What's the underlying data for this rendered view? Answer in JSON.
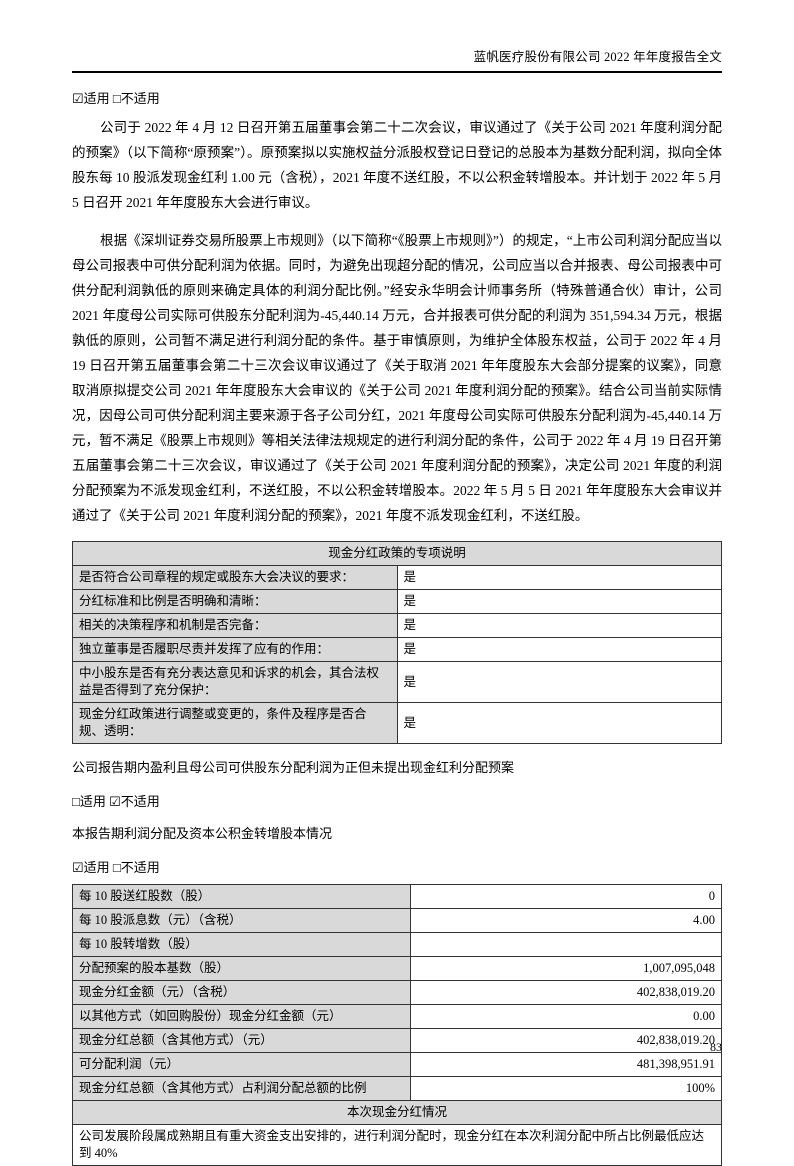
{
  "page": {
    "header_title": "蓝帆医疗股份有限公司 2022 年年度报告全文",
    "page_number": "83"
  },
  "applicability": {
    "line1": "☑适用 □不适用",
    "line2": "□适用 ☑不适用",
    "line3": "☑适用 □不适用"
  },
  "paragraphs": {
    "p1": "公司于 2022 年 4 月 12 日召开第五届董事会第二十二次会议，审议通过了《关于公司 2021 年度利润分配的预案》（以下简称“原预案”）。原预案拟以实施权益分派股权登记日登记的总股本为基数分配利润，拟向全体股东每 10 股派发现金红利 1.00 元（含税），2021 年度不送红股，不以公积金转增股本。并计划于 2022 年 5 月 5 日召开 2021 年年度股东大会进行审议。",
    "p2": "根据《深圳证券交易所股票上市规则》（以下简称“《股票上市规则》”）的规定，“上市公司利润分配应当以母公司报表中可供分配利润为依据。同时，为避免出现超分配的情况，公司应当以合并报表、母公司报表中可供分配利润孰低的原则来确定具体的利润分配比例。”经安永华明会计师事务所（特殊普通合伙）审计，公司 2021 年度母公司实际可供股东分配利润为-45,440.14 万元，合并报表可供分配的利润为 351,594.34 万元，根据孰低的原则，公司暂不满足进行利润分配的条件。基于审慎原则，为维护全体股东权益，公司于 2022 年 4 月 19 日召开第五届董事会第二十三次会议审议通过了《关于取消 2021 年年度股东大会部分提案的议案》，同意取消原拟提交公司 2021 年年度股东大会审议的《关于公司 2021 年度利润分配的预案》。结合公司当前实际情况，因母公司可供分配利润主要来源于各子公司分红，2021 年度母公司实际可供股东分配利润为-45,440.14 万元，暂不满足《股票上市规则》等相关法律法规规定的进行利润分配的条件，公司于 2022 年 4 月 19 日召开第五届董事会第二十三次会议，审议通过了《关于公司 2021 年度利润分配的预案》，决定公司 2021 年度的利润分配预案为不派发现金红利，不送红股，不以公积金转增股本。2022 年 5 月 5 日 2021 年年度股东大会审议并通过了《关于公司 2021 年度利润分配的预案》，2021 年度不派发现金红利，不送红股。"
  },
  "notes": {
    "note1": "公司报告期内盈利且母公司可供股东分配利润为正但未提出现金红利分配预案",
    "note2": "本报告期利润分配及资本公积金转增股本情况"
  },
  "policy_table": {
    "title": "现金分红政策的专项说明",
    "rows": [
      {
        "label": "是否符合公司章程的规定或股东大会决议的要求：",
        "value": "是"
      },
      {
        "label": "分红标准和比例是否明确和清晰：",
        "value": "是"
      },
      {
        "label": "相关的决策程序和机制是否完备：",
        "value": "是"
      },
      {
        "label": "独立董事是否履职尽责并发挥了应有的作用：",
        "value": "是"
      },
      {
        "label": "中小股东是否有充分表达意见和诉求的机会，其合法权益是否得到了充分保护：",
        "value": "是"
      },
      {
        "label": "现金分红政策进行调整或变更的，条件及程序是否合规、透明：",
        "value": "是"
      }
    ]
  },
  "distribution_table": {
    "rows": [
      {
        "label": "每 10 股送红股数（股）",
        "value": "0"
      },
      {
        "label": "每 10 股派息数（元）（含税）",
        "value": "4.00"
      },
      {
        "label": "每 10 股转增数（股）",
        "value": ""
      },
      {
        "label": "分配预案的股本基数（股）",
        "value": "1,007,095,048"
      },
      {
        "label": "现金分红金额（元）（含税）",
        "value": "402,838,019.20"
      },
      {
        "label": "以其他方式（如回购股份）现金分红金额（元）",
        "value": "0.00"
      },
      {
        "label": "现金分红总额（含其他方式）（元）",
        "value": "402,838,019.20"
      },
      {
        "label": "可分配利润（元）",
        "value": "481,398,951.91"
      },
      {
        "label": "现金分红总额（含其他方式）占利润分配总额的比例",
        "value": "100%"
      }
    ],
    "section_title": "本次现金分红情况",
    "section_note": "公司发展阶段属成熟期且有重大资金支出安排的，进行利润分配时，现金分红在本次利润分配中所占比例最低应达到 40%"
  },
  "colors": {
    "table_header_gray": "#d9d9d9",
    "border": "#333333"
  }
}
